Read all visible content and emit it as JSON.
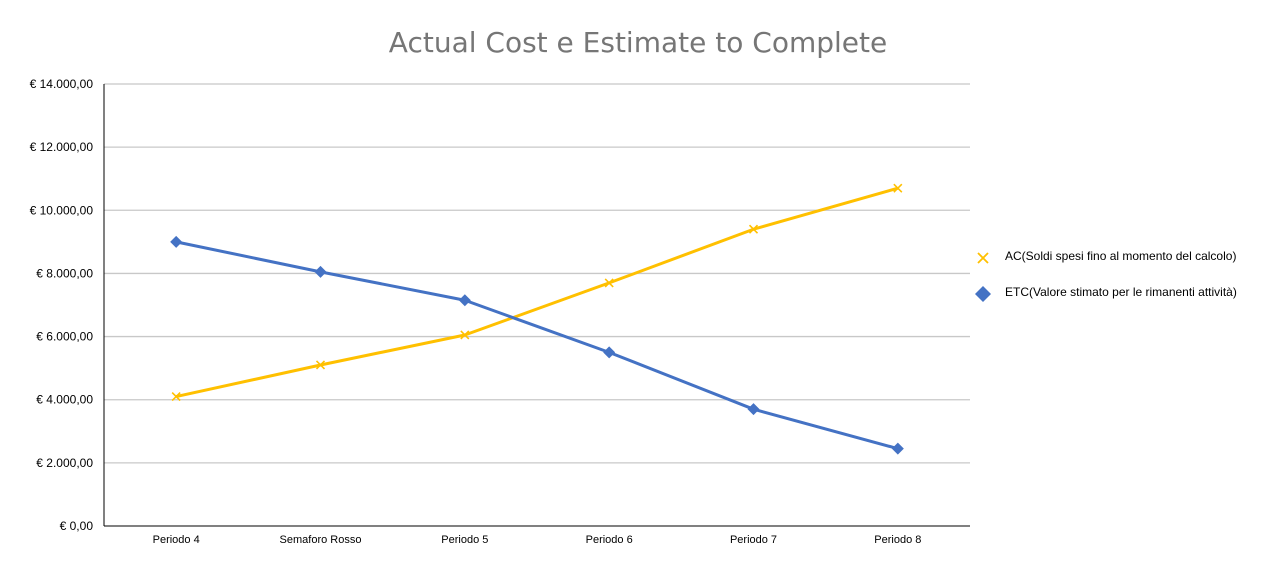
{
  "chart_data": {
    "type": "line",
    "title": "Actual Cost e Estimate to Complete",
    "xlabel": "",
    "ylabel": "",
    "categories": [
      "Periodo 4",
      "Semaforo Rosso",
      "Periodo 5",
      "Periodo 6",
      "Periodo 7",
      "Periodo 8"
    ],
    "ylim": [
      0,
      14000
    ],
    "yticks": [
      0,
      2000,
      4000,
      6000,
      8000,
      10000,
      12000,
      14000
    ],
    "ytick_labels": [
      "€ 0,00",
      "€ 2.000,00",
      "€ 4.000,00",
      "€ 6.000,00",
      "€ 8.000,00",
      "€ 10.000,00",
      "€ 12.000,00",
      "€ 14.000,00"
    ],
    "grid": true,
    "legend_position": "right",
    "series": [
      {
        "name": "AC(Soldi spesi fino al momento del calcolo)",
        "color": "#FFC000",
        "marker": "x",
        "values": [
          4100,
          5100,
          6050,
          7700,
          9400,
          10700
        ]
      },
      {
        "name": "ETC(Valore stimato per le rimanenti attività)",
        "color": "#4472C4",
        "marker": "diamond",
        "values": [
          9000,
          8050,
          7150,
          5500,
          3700,
          2450
        ]
      }
    ]
  }
}
